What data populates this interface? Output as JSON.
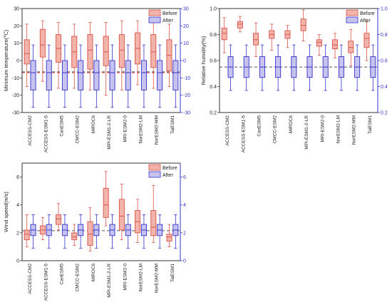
{
  "colors": {
    "before_fill": "#f2b3aa",
    "before_stroke": "#d9544a",
    "after_fill": "#c7c3ee",
    "after_stroke": "#3333cc",
    "left_axis": "#333333",
    "right_axis": "#3333cc",
    "dashed_red": "#d93a3a",
    "dashed_gray": "#555555"
  },
  "chart_data": [
    {
      "type": "box",
      "ylabel": "Minimum temperature(℃)",
      "ylim": [
        -30,
        30
      ],
      "yticks": [
        "-30",
        "-20",
        "-10",
        "0",
        "10",
        "20",
        "30"
      ],
      "right_ylim": [
        -30,
        30
      ],
      "right_yticks": [
        "-30",
        "-20",
        "-10",
        "0",
        "10",
        "20",
        "30"
      ],
      "categories": [
        "ACCESS-CM2",
        "ACCESS-ESM1-5",
        "CanESM5",
        "CMCC-ESM2",
        "MIROC6",
        "MPI-ESM1-2-LR",
        "MRI-ESM2-0",
        "NorESM2-LM",
        "NorESM2-MM",
        "TaiESM1"
      ],
      "legend": [
        "Before",
        "After"
      ],
      "legend_position": "top-right",
      "ref_lines": [
        -7,
        -6.5
      ],
      "series": [
        {
          "name": "Before",
          "boxes": [
            [
              -15,
              -2,
              4,
              12,
              21
            ],
            [
              -12,
              2,
              9,
              18,
              23
            ],
            [
              -16,
              -1,
              7,
              15,
              22
            ],
            [
              -16,
              -4,
              5,
              14,
              21
            ],
            [
              -17,
              -5,
              6,
              15,
              22
            ],
            [
              -20,
              -3,
              5,
              14,
              22
            ],
            [
              -17,
              -4,
              6,
              15,
              23
            ],
            [
              -14,
              -2,
              7,
              16,
              23
            ],
            [
              -16,
              -4,
              5,
              15,
              22
            ],
            [
              -15,
              -6,
              3,
              12,
              21
            ]
          ]
        },
        {
          "name": "After",
          "boxes": [
            [
              -27,
              -17,
              -7,
              0,
              9
            ],
            [
              -27,
              -17,
              -7,
              0,
              9
            ],
            [
              -27,
              -17,
              -7,
              0,
              9
            ],
            [
              -27,
              -17,
              -7,
              0,
              9
            ],
            [
              -27,
              -17,
              -7,
              0,
              9
            ],
            [
              -27,
              -17,
              -7,
              0,
              9
            ],
            [
              -27,
              -17,
              -7,
              0,
              9
            ],
            [
              -27,
              -17,
              -7,
              0,
              9
            ],
            [
              -27,
              -17,
              -7,
              0,
              9
            ],
            [
              -27,
              -17,
              -7,
              0,
              9
            ]
          ]
        }
      ]
    },
    {
      "type": "box",
      "ylabel": "Relative humidity(%)",
      "ylim": [
        0.2,
        1.0
      ],
      "yticks": [
        "0.2",
        "0.4",
        "0.6",
        "0.8",
        "1.0"
      ],
      "right_ylim": [
        0.2,
        1.0
      ],
      "right_yticks": [
        "0.2",
        "0.4",
        "0.6",
        "0.8",
        "1.0"
      ],
      "categories": [
        "ACCESS-CM2",
        "ACCESS-ESM1-5",
        "CanESM5",
        "CMCC-ESM2",
        "MIROC6",
        "MPI-ESM1-2-LR",
        "MRI-ESM2-0",
        "NorESM2-LM",
        "NorESM2-MM",
        "TaiESM1"
      ],
      "legend": [
        "Before",
        "After"
      ],
      "legend_position": "top-right",
      "ref_lines": [
        0.55
      ],
      "series": [
        {
          "name": "Before",
          "boxes": [
            [
              0.66,
              0.76,
              0.81,
              0.85,
              0.93
            ],
            [
              0.82,
              0.85,
              0.88,
              0.9,
              0.94
            ],
            [
              0.63,
              0.72,
              0.76,
              0.81,
              0.89
            ],
            [
              0.68,
              0.77,
              0.8,
              0.83,
              0.88
            ],
            [
              0.7,
              0.77,
              0.8,
              0.83,
              0.87
            ],
            [
              0.75,
              0.83,
              0.87,
              0.92,
              0.99
            ],
            [
              0.64,
              0.71,
              0.74,
              0.76,
              0.8
            ],
            [
              0.62,
              0.69,
              0.72,
              0.76,
              0.81
            ],
            [
              0.56,
              0.66,
              0.7,
              0.75,
              0.84
            ],
            [
              0.6,
              0.7,
              0.77,
              0.81,
              0.9
            ]
          ]
        },
        {
          "name": "After",
          "boxes": [
            [
              0.37,
              0.47,
              0.55,
              0.63,
              0.72
            ],
            [
              0.37,
              0.47,
              0.55,
              0.63,
              0.72
            ],
            [
              0.37,
              0.47,
              0.55,
              0.63,
              0.72
            ],
            [
              0.37,
              0.47,
              0.55,
              0.63,
              0.72
            ],
            [
              0.37,
              0.47,
              0.55,
              0.63,
              0.72
            ],
            [
              0.37,
              0.47,
              0.55,
              0.63,
              0.72
            ],
            [
              0.37,
              0.47,
              0.55,
              0.63,
              0.72
            ],
            [
              0.37,
              0.47,
              0.55,
              0.63,
              0.72
            ],
            [
              0.37,
              0.47,
              0.55,
              0.63,
              0.72
            ],
            [
              0.37,
              0.47,
              0.55,
              0.63,
              0.72
            ]
          ]
        }
      ]
    },
    {
      "type": "box",
      "ylabel": "Wind speed(m/s)",
      "ylim": [
        0,
        7
      ],
      "yticks": [
        "0",
        "2",
        "4",
        "6"
      ],
      "right_ylim": [
        0,
        7
      ],
      "right_yticks": [
        "0",
        "2",
        "4",
        "6"
      ],
      "categories": [
        "ACCESS-CM2",
        "ACCESS-ESM1-5",
        "CanESM5",
        "CMCC-ESM2",
        "MIROC6",
        "MPI-ESM1-2-LR",
        "MRI-ESM2-0",
        "NorESM2-LM",
        "NorESM2-MM",
        "TaiESM1"
      ],
      "legend": [
        "Before",
        "After"
      ],
      "legend_position": "top-right",
      "ref_lines": [
        2.15
      ],
      "series": [
        {
          "name": "Before",
          "boxes": [
            [
              1.0,
              1.5,
              1.9,
              2.2,
              3.3
            ],
            [
              1.5,
              1.9,
              2.2,
              2.5,
              3.1
            ],
            [
              2.2,
              2.6,
              3.0,
              3.3,
              4.1
            ],
            [
              1.1,
              1.5,
              1.7,
              2.0,
              2.6
            ],
            [
              0.7,
              1.1,
              1.9,
              2.8,
              3.8
            ],
            [
              2.5,
              3.1,
              4.0,
              5.2,
              6.4
            ],
            [
              1.5,
              2.2,
              3.2,
              4.4,
              5.5
            ],
            [
              1.3,
              2.0,
              2.8,
              3.6,
              4.4
            ],
            [
              1.3,
              1.8,
              2.4,
              3.6,
              5.4
            ],
            [
              1.0,
              1.4,
              1.7,
              1.9,
              2.6
            ]
          ]
        },
        {
          "name": "After",
          "boxes": [
            [
              0.9,
              1.8,
              2.2,
              2.6,
              3.3
            ],
            [
              0.9,
              1.8,
              2.2,
              2.6,
              3.3
            ],
            [
              0.9,
              1.8,
              2.2,
              2.6,
              3.3
            ],
            [
              0.9,
              1.8,
              2.2,
              2.6,
              3.3
            ],
            [
              0.9,
              1.8,
              2.2,
              2.6,
              3.3
            ],
            [
              0.9,
              1.8,
              2.2,
              2.6,
              3.3
            ],
            [
              0.9,
              1.8,
              2.2,
              2.6,
              3.3
            ],
            [
              0.9,
              1.8,
              2.2,
              2.6,
              3.3
            ],
            [
              0.9,
              1.8,
              2.2,
              2.6,
              3.3
            ],
            [
              0.9,
              1.8,
              2.2,
              2.6,
              3.3
            ]
          ]
        }
      ]
    }
  ]
}
